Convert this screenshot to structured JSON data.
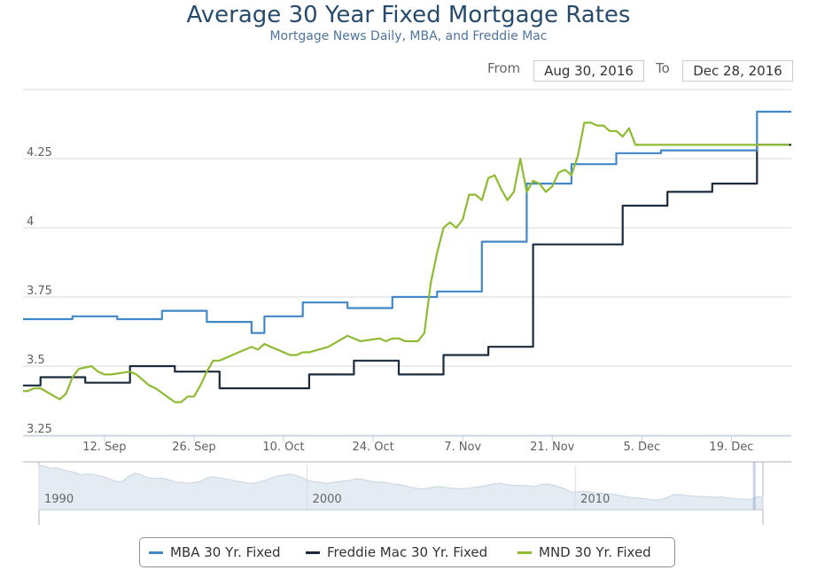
{
  "title": "Average 30 Year Fixed Mortgage Rates",
  "subtitle": "Mortgage News Daily, MBA, and Freddie Mac",
  "range": {
    "from_label": "From",
    "from_value": "Aug 30, 2016",
    "to_label": "To",
    "to_value": "Dec 28, 2016"
  },
  "chart_data": {
    "type": "line",
    "x_start": "Aug 30, 2016",
    "x_end": "Dec 28, 2016",
    "x_ticks": [
      "12. Sep",
      "26. Sep",
      "10. Oct",
      "24. Oct",
      "7. Nov",
      "21. Nov",
      "5. Dec",
      "19. Dec"
    ],
    "x_tick_days": [
      13,
      27,
      41,
      55,
      69,
      83,
      97,
      111
    ],
    "y_ticks": [
      "3.25",
      "3.5",
      "3.75",
      "4",
      "4.25"
    ],
    "y_tick_values": [
      3.25,
      3.5,
      3.75,
      4.0,
      4.25
    ],
    "ylim": [
      3.25,
      4.5
    ],
    "grid": true,
    "legend_position": "bottom",
    "series": [
      {
        "name": "MBA 30 Yr. Fixed",
        "color": "#4287c7",
        "step": true,
        "x": [
          0,
          8,
          15,
          22,
          29,
          36,
          38,
          44,
          51,
          58,
          65,
          72,
          79,
          86,
          93,
          100,
          114,
          115
        ],
        "y": [
          3.67,
          3.68,
          3.67,
          3.7,
          3.66,
          3.62,
          3.68,
          3.73,
          3.71,
          3.75,
          3.77,
          3.95,
          4.16,
          4.23,
          4.27,
          4.28,
          4.28,
          4.42
        ]
      },
      {
        "name": "Freddie Mac 30 Yr. Fixed",
        "color": "#1a2b3c",
        "step": true,
        "x": [
          0,
          3,
          10,
          17,
          24,
          31,
          45,
          52,
          59,
          66,
          73,
          80,
          87,
          94,
          101,
          108,
          115
        ],
        "y": [
          3.43,
          3.46,
          3.44,
          3.5,
          3.48,
          3.42,
          3.47,
          3.52,
          3.47,
          3.54,
          3.57,
          3.94,
          3.94,
          4.08,
          4.13,
          4.16,
          4.3
        ]
      },
      {
        "name": "MND 30 Yr. Fixed",
        "color": "#8dbb32",
        "step": false,
        "x": [
          0,
          1,
          2,
          3,
          6,
          7,
          8,
          9,
          11,
          12,
          13,
          14,
          17,
          18,
          20,
          21,
          24,
          25,
          26,
          27,
          28,
          29,
          30,
          31,
          32,
          35,
          36,
          37,
          38,
          39,
          40,
          41,
          42,
          43,
          44,
          45,
          48,
          51,
          52,
          53,
          56,
          57,
          58,
          59,
          60,
          61,
          62,
          63,
          64,
          65,
          66,
          67,
          68,
          69,
          70,
          71,
          72,
          73,
          74,
          75,
          76,
          77,
          78,
          79,
          80,
          81,
          82,
          83,
          84,
          85,
          86,
          87,
          88,
          89,
          90,
          91,
          92,
          93,
          94,
          95,
          96,
          97,
          98,
          99,
          100,
          101,
          102,
          103,
          104,
          105,
          106,
          107,
          108,
          109,
          110,
          111,
          112,
          113,
          114,
          115,
          116,
          117,
          118,
          119,
          120
        ],
        "y": [
          3.41,
          3.41,
          3.42,
          3.42,
          3.38,
          3.4,
          3.46,
          3.49,
          3.5,
          3.48,
          3.47,
          3.47,
          3.48,
          3.47,
          3.43,
          3.42,
          3.37,
          3.37,
          3.39,
          3.39,
          3.43,
          3.48,
          3.52,
          3.52,
          3.53,
          3.56,
          3.57,
          3.56,
          3.58,
          3.57,
          3.56,
          3.55,
          3.54,
          3.54,
          3.55,
          3.55,
          3.57,
          3.61,
          3.6,
          3.59,
          3.6,
          3.59,
          3.6,
          3.6,
          3.59,
          3.59,
          3.59,
          3.62,
          3.8,
          3.91,
          4.0,
          4.02,
          4.0,
          4.03,
          4.12,
          4.12,
          4.1,
          4.18,
          4.19,
          4.14,
          4.1,
          4.13,
          4.25,
          4.13,
          4.17,
          4.16,
          4.13,
          4.15,
          4.2,
          4.21,
          4.19,
          4.26,
          4.38,
          4.38,
          4.37,
          4.37,
          4.35,
          4.35,
          4.33,
          4.36,
          4.3,
          4.3,
          4.3,
          4.3,
          4.3,
          4.3,
          4.3,
          4.3,
          4.3,
          4.3,
          4.3,
          4.3,
          4.3,
          4.3,
          4.3,
          4.3,
          4.3,
          4.3,
          4.3,
          4.3,
          4.3,
          4.3,
          4.3,
          4.3,
          4.3
        ]
      }
    ]
  },
  "navigator": {
    "labels": [
      "1990",
      "2000",
      "2010"
    ],
    "label_years": [
      1990,
      2000,
      2010
    ],
    "year_start": 1990,
    "year_end": 2017,
    "overview_y": [
      10.2,
      10.0,
      9.6,
      9.7,
      9.3,
      9.0,
      8.8,
      8.3,
      8.5,
      8.4,
      8.2,
      7.9,
      7.5,
      7.0,
      7.1,
      8.1,
      8.7,
      8.4,
      7.9,
      7.6,
      7.7,
      7.6,
      7.3,
      6.9,
      6.9,
      6.7,
      6.9,
      7.1,
      7.7,
      8.0,
      7.8,
      7.6,
      7.4,
      7.1,
      7.0,
      6.7,
      6.8,
      7.0,
      7.4,
      7.8,
      8.2,
      8.3,
      8.5,
      8.2,
      7.8,
      7.3,
      7.0,
      6.9,
      6.7,
      6.9,
      7.0,
      7.2,
      7.3,
      7.6,
      7.5,
      7.2,
      7.0,
      6.9,
      6.9,
      6.6,
      6.5,
      6.3,
      6.0,
      5.8,
      5.6,
      5.8,
      6.0,
      6.1,
      5.9,
      5.8,
      5.7,
      5.7,
      5.8,
      6.0,
      6.1,
      6.4,
      6.6,
      6.7,
      6.5,
      6.4,
      6.3,
      6.3,
      6.2,
      6.1,
      6.5,
      6.6,
      6.3,
      6.0,
      5.6,
      5.0,
      5.1,
      5.2,
      5.1,
      4.9,
      4.8,
      4.7,
      4.6,
      4.4,
      4.2,
      4.0,
      3.9,
      3.8,
      3.6,
      3.5,
      3.6,
      4.0,
      4.5,
      4.6,
      4.4,
      4.3,
      4.2,
      4.2,
      4.1,
      4.0,
      4.1,
      3.9,
      3.8,
      3.7,
      3.7,
      3.6,
      4.1,
      4.2
    ]
  },
  "legend": {
    "items": [
      {
        "label": "MBA 30 Yr. Fixed",
        "color": "#4287c7"
      },
      {
        "label": "Freddie Mac 30 Yr. Fixed",
        "color": "#1a2b3c"
      },
      {
        "label": "MND 30 Yr. Fixed",
        "color": "#8dbb32"
      }
    ]
  }
}
